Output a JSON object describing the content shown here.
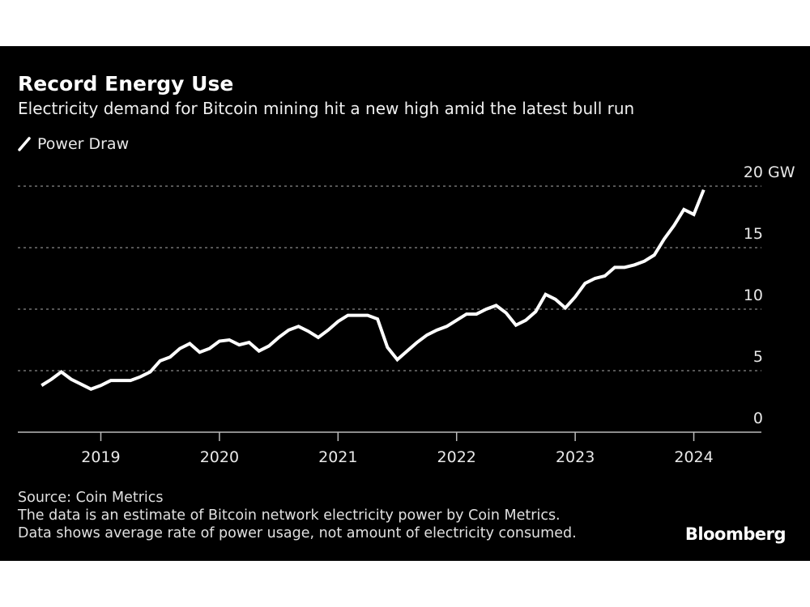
{
  "chart_data": {
    "type": "line",
    "title": "Record Energy Use",
    "subtitle": "Electricity demand for Bitcoin mining hit a new high amid the latest bull run",
    "legend": {
      "position": "top-left",
      "entries": [
        "Power Draw"
      ]
    },
    "series": [
      {
        "name": "Power Draw",
        "color": "#ffffff",
        "x": [
          "2018-07",
          "2018-08",
          "2018-09",
          "2018-10",
          "2018-11",
          "2018-12",
          "2019-01",
          "2019-02",
          "2019-03",
          "2019-04",
          "2019-05",
          "2019-06",
          "2019-07",
          "2019-08",
          "2019-09",
          "2019-10",
          "2019-11",
          "2019-12",
          "2020-01",
          "2020-02",
          "2020-03",
          "2020-04",
          "2020-05",
          "2020-06",
          "2020-07",
          "2020-08",
          "2020-09",
          "2020-10",
          "2020-11",
          "2020-12",
          "2021-01",
          "2021-02",
          "2021-03",
          "2021-04",
          "2021-05",
          "2021-06",
          "2021-07",
          "2021-08",
          "2021-09",
          "2021-10",
          "2021-11",
          "2021-12",
          "2022-01",
          "2022-02",
          "2022-03",
          "2022-04",
          "2022-05",
          "2022-06",
          "2022-07",
          "2022-08",
          "2022-09",
          "2022-10",
          "2022-11",
          "2022-12",
          "2023-01",
          "2023-02",
          "2023-03",
          "2023-04",
          "2023-05",
          "2023-06",
          "2023-07",
          "2023-08",
          "2023-09",
          "2023-10",
          "2023-11",
          "2023-12",
          "2024-01",
          "2024-02"
        ],
        "values": [
          3.8,
          4.3,
          4.9,
          4.3,
          3.9,
          3.5,
          3.8,
          4.2,
          4.2,
          4.2,
          4.5,
          4.9,
          5.8,
          6.1,
          6.8,
          7.2,
          6.5,
          6.8,
          7.4,
          7.5,
          7.1,
          7.3,
          6.6,
          7.0,
          7.7,
          8.3,
          8.6,
          8.2,
          7.7,
          8.3,
          9.0,
          9.5,
          9.5,
          9.5,
          9.2,
          6.9,
          5.9,
          6.6,
          7.3,
          7.9,
          8.3,
          8.6,
          9.1,
          9.6,
          9.6,
          10.0,
          10.3,
          9.7,
          8.7,
          9.1,
          9.8,
          11.2,
          10.8,
          10.1,
          11.0,
          12.1,
          12.5,
          12.7,
          13.4,
          13.4,
          13.6,
          13.9,
          14.4,
          15.7,
          16.8,
          18.1,
          17.7,
          19.7
        ]
      }
    ],
    "xlim": [
      2018.3,
      2024.57
    ],
    "ylim": [
      0,
      20
    ],
    "x_ticks": [
      "2019",
      "2020",
      "2021",
      "2022",
      "2023",
      "2024"
    ],
    "y_ticks": [
      0,
      5,
      10,
      15,
      20
    ],
    "y_tick_labels": [
      "0",
      "5",
      "10",
      "15",
      "20"
    ],
    "y_unit": "GW",
    "grid": "horizontal dotted"
  },
  "footer": {
    "source": "Source: Coin Metrics",
    "note1": "The data is an estimate of Bitcoin network electricity power by Coin Metrics.",
    "note2": "Data shows average rate of power usage, not amount of electricity consumed."
  },
  "brand": "Bloomberg"
}
